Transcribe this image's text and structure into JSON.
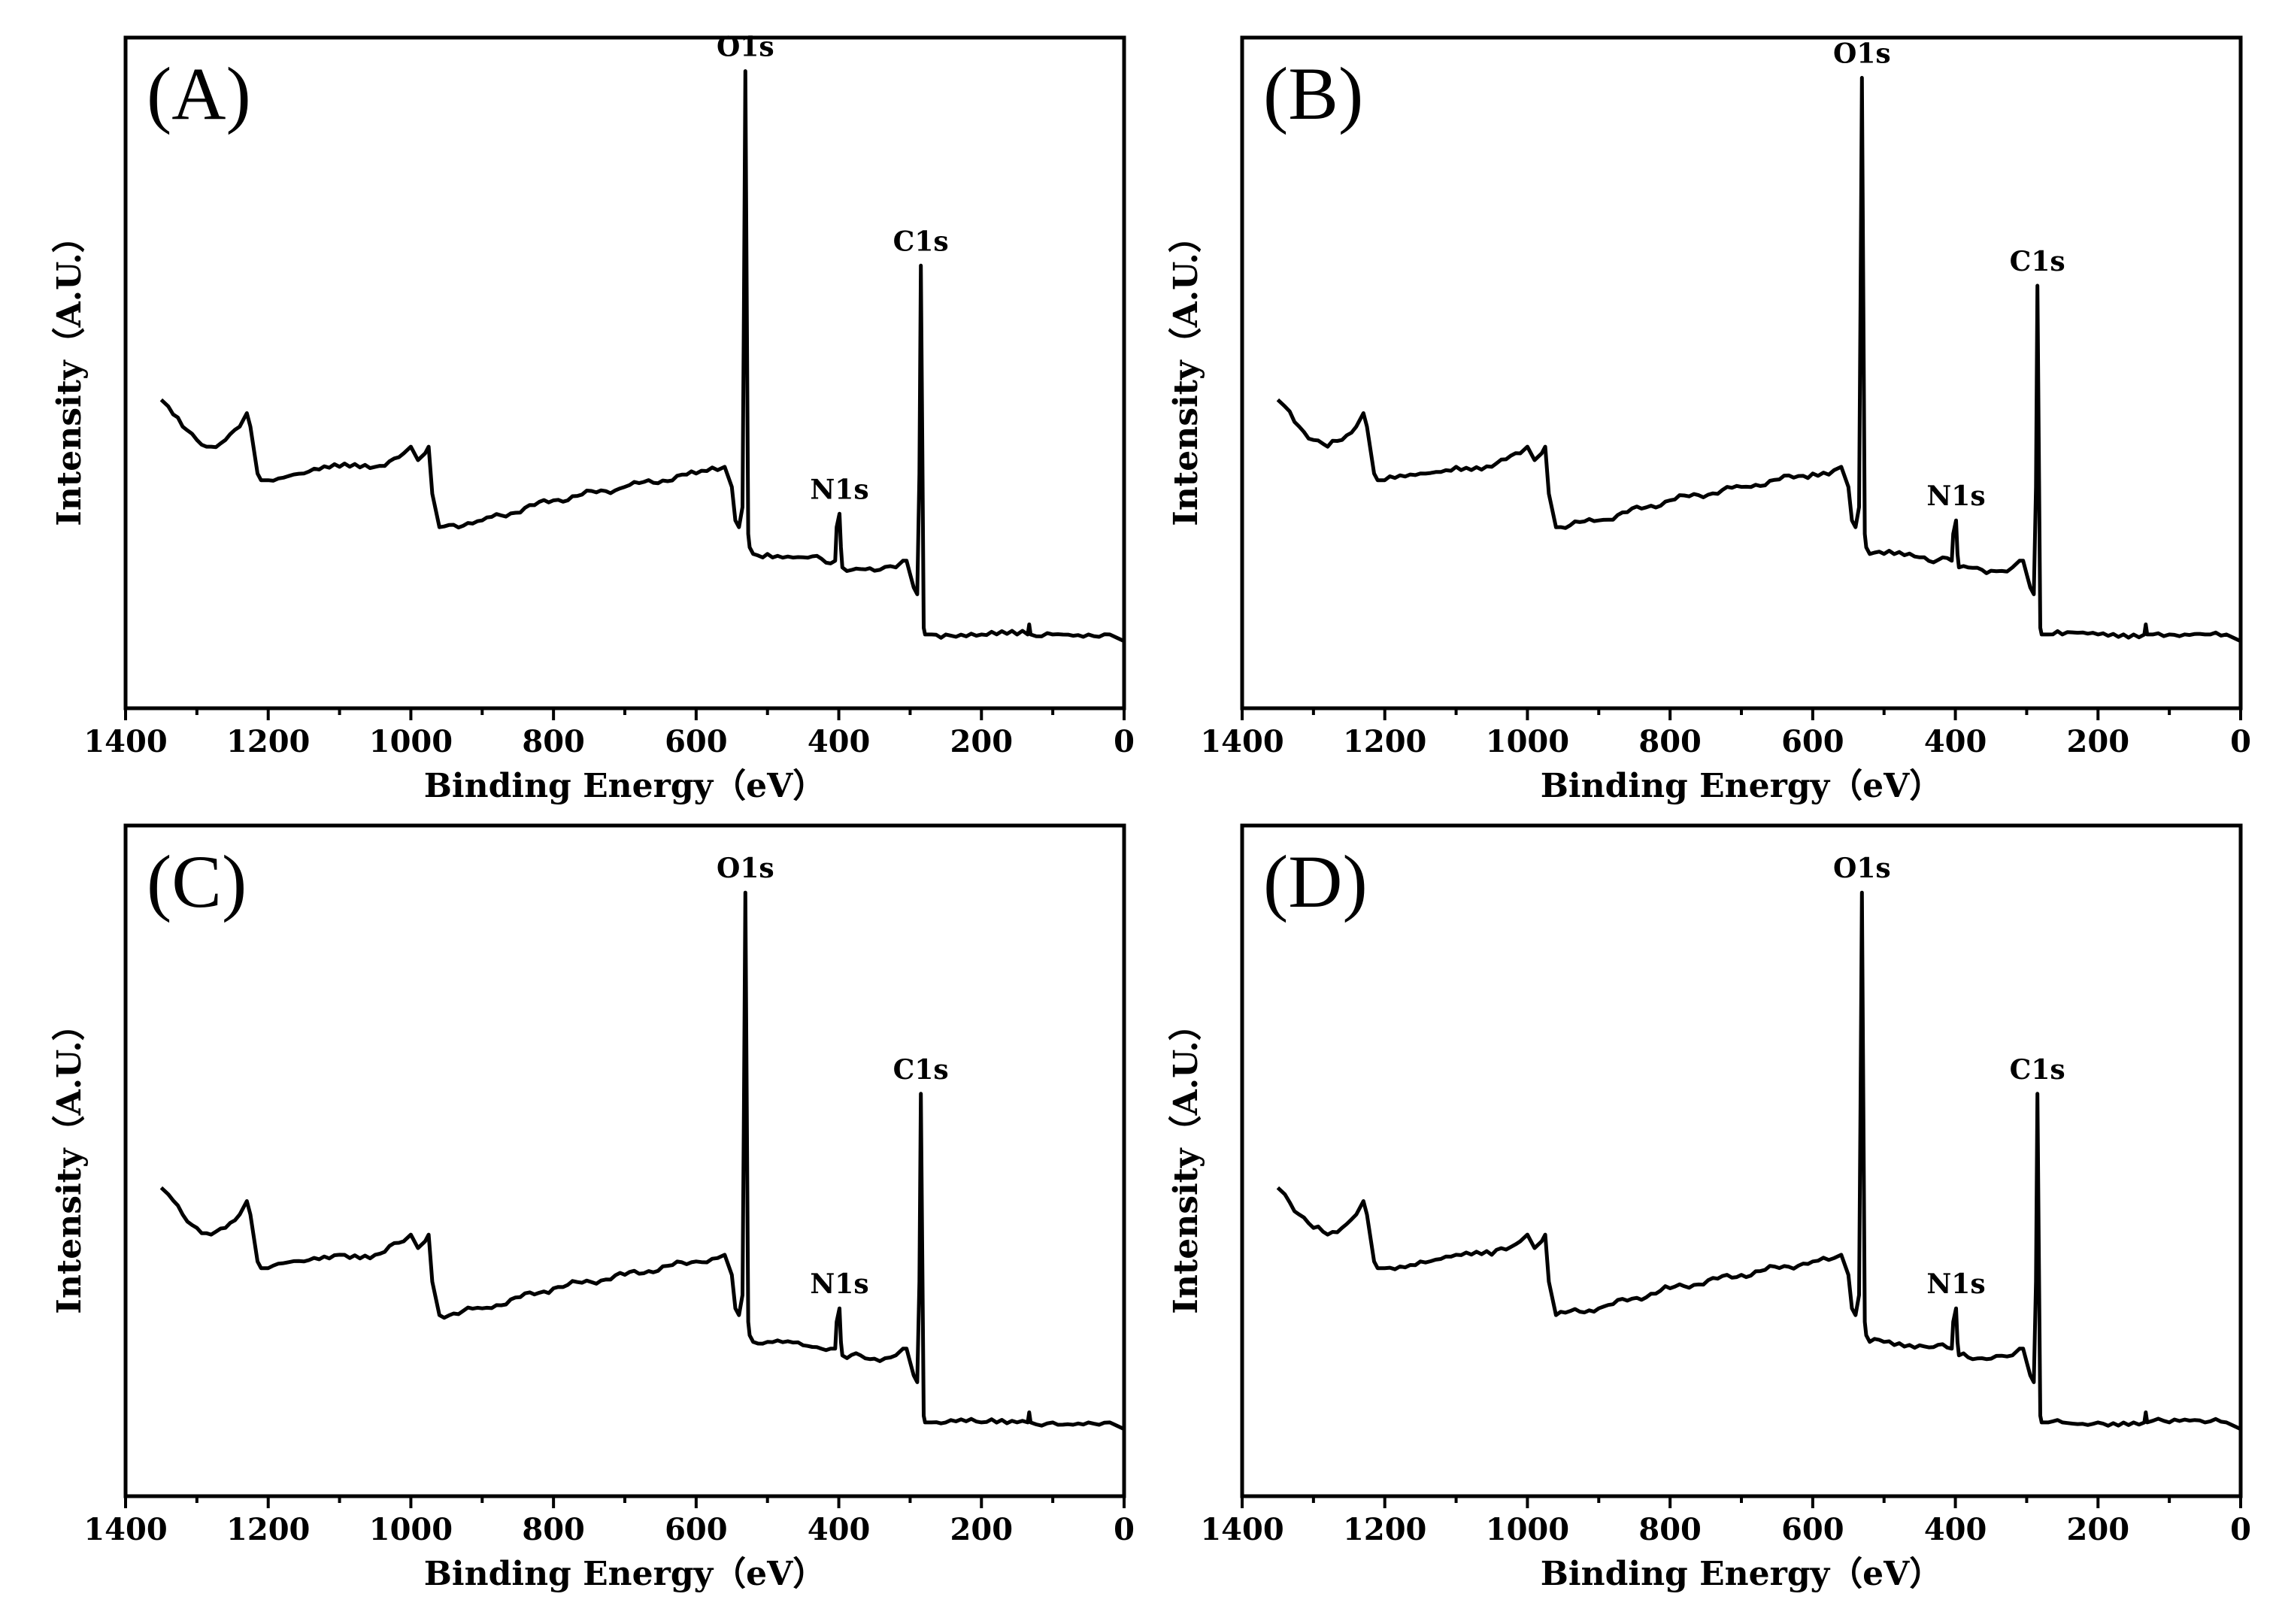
{
  "colors": {
    "line": "#000000",
    "background": "#ffffff"
  },
  "chart_data": [
    {
      "type": "line",
      "panel": "(A)",
      "xlabel": "Binding Energy（eV）",
      "ylabel": "Intensity（A.U.）",
      "xlim": [
        1400,
        0
      ],
      "ylim": [
        0,
        100
      ],
      "xticks": [
        "1400",
        "1200",
        "1000",
        "800",
        "600",
        "400",
        "200",
        "0"
      ],
      "peaks": [
        {
          "label": "O1s",
          "x": 531,
          "y": 95
        },
        {
          "label": "N1s",
          "x": 399,
          "y": 29
        },
        {
          "label": "C1s",
          "x": 285,
          "y": 66
        }
      ],
      "series": [
        {
          "name": "A",
          "x": [
            1350,
            1340,
            1320,
            1300,
            1280,
            1260,
            1240,
            1230,
            1225,
            1215,
            1210,
            1200,
            1150,
            1100,
            1050,
            1010,
            1000,
            990,
            980,
            975,
            970,
            960,
            900,
            800,
            700,
            600,
            570,
            560,
            550,
            545,
            540,
            535,
            533,
            531,
            529,
            527,
            525,
            520,
            500,
            450,
            405,
            403,
            399,
            397,
            395,
            350,
            320,
            310,
            305,
            300,
            295,
            290,
            287,
            285,
            283,
            281,
            279,
            270,
            250,
            200,
            150,
            135,
            133,
            131,
            100,
            50,
            20,
            10,
            0
          ],
          "y": [
            46,
            45,
            42,
            40,
            39,
            40,
            42,
            44,
            42,
            35,
            34,
            34,
            35,
            36,
            36,
            38,
            39,
            37,
            38,
            39,
            32,
            27,
            28,
            31,
            33,
            35,
            35.5,
            36,
            33,
            28,
            27,
            30,
            60,
            95,
            60,
            26,
            24,
            23,
            23,
            22.5,
            22,
            27,
            29,
            24,
            21,
            20.5,
            21,
            22,
            22,
            20,
            18,
            17,
            35,
            66,
            40,
            12,
            11,
            11,
            11,
            11,
            11,
            11,
            12.5,
            11,
            11,
            11,
            11,
            10.5,
            10
          ]
        }
      ]
    },
    {
      "type": "line",
      "panel": "(B)",
      "xlabel": "Binding Energy（eV）",
      "ylabel": "Intensity（A.U.）",
      "xlim": [
        1400,
        0
      ],
      "ylim": [
        0,
        100
      ],
      "xticks": [
        "1400",
        "1200",
        "1000",
        "800",
        "600",
        "400",
        "200",
        "0"
      ],
      "peaks": [
        {
          "label": "O1s",
          "x": 531,
          "y": 94
        },
        {
          "label": "N1s",
          "x": 399,
          "y": 28
        },
        {
          "label": "C1s",
          "x": 285,
          "y": 63
        }
      ],
      "series": [
        {
          "name": "B",
          "x": [
            1350,
            1340,
            1320,
            1300,
            1280,
            1260,
            1240,
            1230,
            1225,
            1215,
            1210,
            1200,
            1150,
            1100,
            1050,
            1010,
            1000,
            990,
            980,
            975,
            970,
            960,
            900,
            800,
            700,
            600,
            570,
            560,
            550,
            545,
            540,
            535,
            533,
            531,
            529,
            527,
            525,
            520,
            500,
            450,
            405,
            403,
            399,
            397,
            395,
            350,
            320,
            310,
            305,
            300,
            295,
            290,
            287,
            285,
            283,
            281,
            279,
            270,
            250,
            200,
            150,
            135,
            133,
            131,
            100,
            50,
            20,
            10,
            0
          ],
          "y": [
            46,
            45,
            42,
            40,
            39,
            40,
            42,
            44,
            42,
            35,
            34,
            34,
            35,
            36,
            36,
            38,
            39,
            37,
            38,
            39,
            32,
            27,
            28,
            31,
            33,
            35,
            35.5,
            36,
            33,
            28,
            27,
            30,
            60,
            94,
            60,
            26,
            24,
            23,
            23,
            22.5,
            22,
            26,
            28,
            23,
            21,
            20.5,
            21,
            22,
            22,
            20,
            18,
            17,
            33,
            63,
            38,
            12,
            11,
            11,
            11,
            11,
            11,
            11,
            12.5,
            11,
            11,
            11,
            11,
            10.5,
            10
          ]
        }
      ]
    },
    {
      "type": "line",
      "panel": "(C)",
      "xlabel": "Binding Energy（eV）",
      "ylabel": "Intensity（A.U.）",
      "xlim": [
        1400,
        0
      ],
      "ylim": [
        0,
        100
      ],
      "xticks": [
        "1400",
        "1200",
        "1000",
        "800",
        "600",
        "400",
        "200",
        "0"
      ],
      "peaks": [
        {
          "label": "O1s",
          "x": 531,
          "y": 90
        },
        {
          "label": "N1s",
          "x": 399,
          "y": 28
        },
        {
          "label": "C1s",
          "x": 285,
          "y": 60
        }
      ],
      "series": [
        {
          "name": "C",
          "x": [
            1350,
            1340,
            1320,
            1300,
            1280,
            1260,
            1240,
            1230,
            1225,
            1215,
            1210,
            1200,
            1150,
            1100,
            1050,
            1010,
            1000,
            990,
            980,
            975,
            970,
            960,
            900,
            800,
            700,
            600,
            570,
            560,
            550,
            545,
            540,
            535,
            533,
            531,
            529,
            527,
            525,
            520,
            500,
            450,
            405,
            403,
            399,
            397,
            395,
            350,
            320,
            310,
            305,
            300,
            295,
            290,
            287,
            285,
            283,
            281,
            279,
            270,
            250,
            200,
            150,
            135,
            133,
            131,
            100,
            50,
            20,
            10,
            0
          ],
          "y": [
            46,
            45,
            42,
            40,
            39,
            40,
            42,
            44,
            42,
            35,
            34,
            34,
            35,
            36,
            36,
            38,
            39,
            37,
            38,
            39,
            32,
            27,
            28,
            31,
            33,
            35,
            35.5,
            36,
            33,
            28,
            27,
            30,
            58,
            90,
            58,
            26,
            24,
            23,
            23,
            22.5,
            22,
            26,
            28,
            23,
            21,
            20.5,
            21,
            22,
            22,
            20,
            18,
            17,
            32,
            60,
            36,
            12,
            11,
            11,
            11,
            11,
            11,
            11,
            12.5,
            11,
            11,
            11,
            11,
            10.5,
            10
          ]
        }
      ]
    },
    {
      "type": "line",
      "panel": "(D)",
      "xlabel": "Binding Energy（eV）",
      "ylabel": "Intensity（A.U.）",
      "xlim": [
        1400,
        0
      ],
      "ylim": [
        0,
        100
      ],
      "xticks": [
        "1400",
        "1200",
        "1000",
        "800",
        "600",
        "400",
        "200",
        "0"
      ],
      "peaks": [
        {
          "label": "O1s",
          "x": 531,
          "y": 90
        },
        {
          "label": "N1s",
          "x": 399,
          "y": 28
        },
        {
          "label": "C1s",
          "x": 285,
          "y": 60
        }
      ],
      "series": [
        {
          "name": "D",
          "x": [
            1350,
            1340,
            1320,
            1300,
            1280,
            1260,
            1240,
            1230,
            1225,
            1215,
            1210,
            1200,
            1150,
            1100,
            1050,
            1010,
            1000,
            990,
            980,
            975,
            970,
            960,
            900,
            800,
            700,
            600,
            570,
            560,
            550,
            545,
            540,
            535,
            533,
            531,
            529,
            527,
            525,
            520,
            500,
            450,
            405,
            403,
            399,
            397,
            395,
            350,
            320,
            310,
            305,
            300,
            295,
            290,
            287,
            285,
            283,
            281,
            279,
            270,
            250,
            200,
            150,
            135,
            133,
            131,
            100,
            50,
            20,
            10,
            0
          ],
          "y": [
            46,
            45,
            42,
            40,
            39,
            40,
            42,
            44,
            42,
            35,
            34,
            34,
            35,
            36,
            36,
            38,
            39,
            37,
            38,
            39,
            32,
            27,
            28,
            31,
            33,
            35,
            35.5,
            36,
            33,
            28,
            27,
            30,
            58,
            90,
            58,
            26,
            24,
            23,
            23,
            22.5,
            22,
            26,
            28,
            23,
            21,
            20.5,
            21,
            22,
            22,
            20,
            18,
            17,
            32,
            60,
            36,
            12,
            11,
            11,
            11,
            11,
            11,
            11,
            12.5,
            11,
            11,
            11,
            11,
            10.5,
            10
          ]
        }
      ]
    }
  ]
}
